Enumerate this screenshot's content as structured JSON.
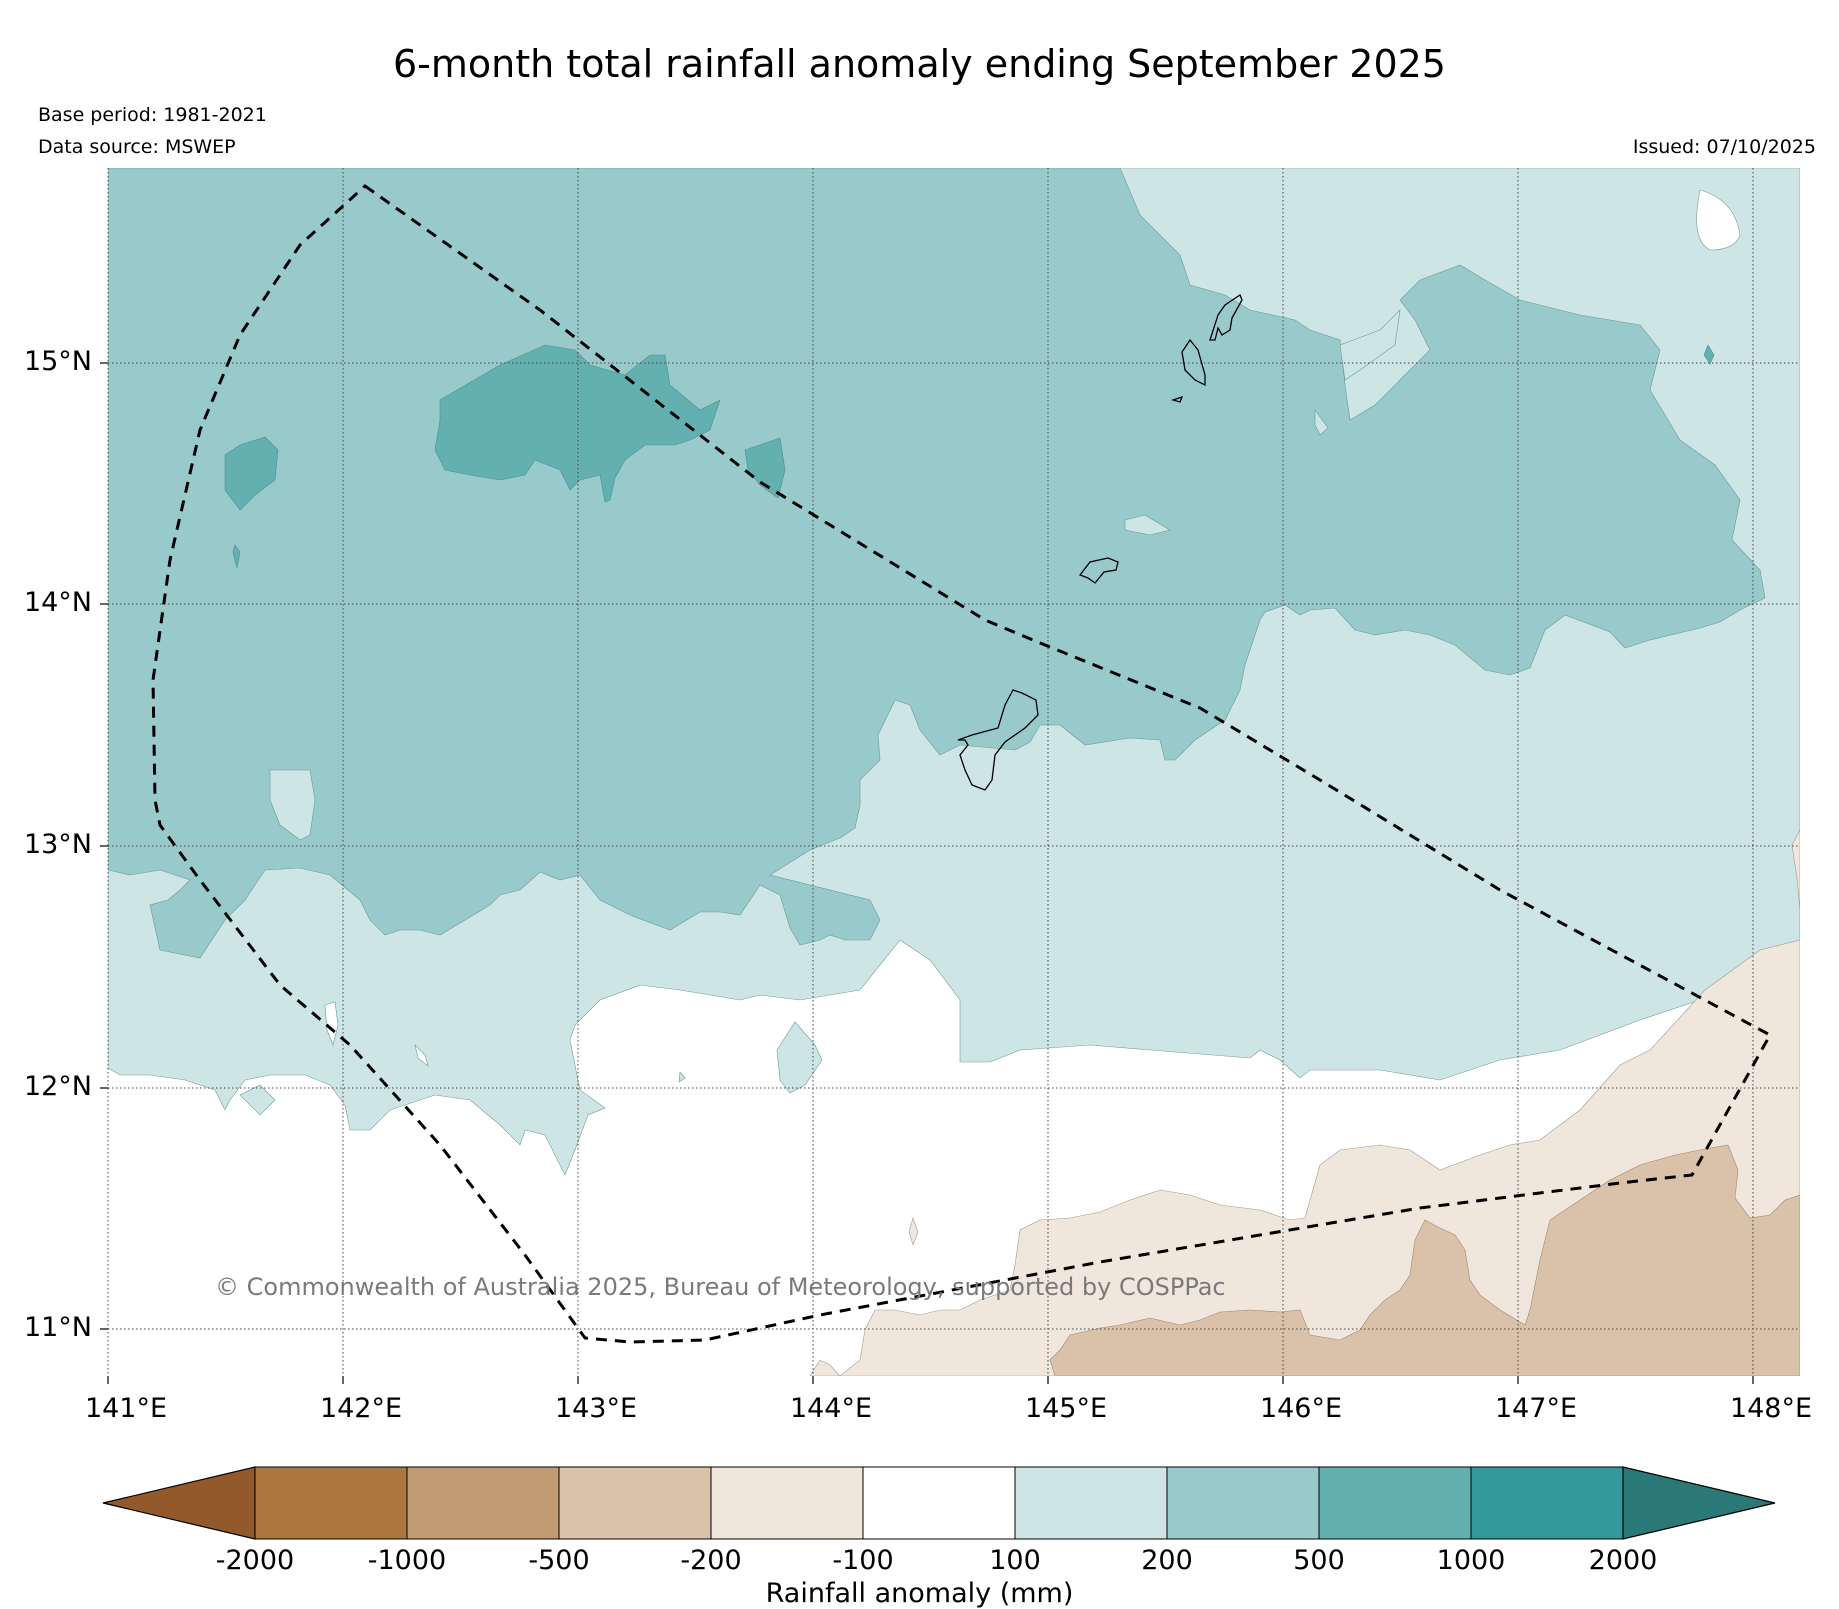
{
  "title": "6-month total rainfall anomaly ending September 2025",
  "meta": {
    "base_period": "Base period: 1981-2021",
    "data_source": "Data source: MSWEP",
    "issued": "Issued: 07/10/2025"
  },
  "map": {
    "lat_labels": [
      "15°N",
      "14°N",
      "13°N",
      "12°N",
      "11°N"
    ],
    "lon_labels": [
      "141°E",
      "142°E",
      "143°E",
      "144°E",
      "145°E",
      "146°E",
      "147°E",
      "148°E"
    ],
    "lon_range": [
      141.0,
      148.2
    ],
    "lat_range": [
      10.8,
      15.8
    ],
    "region_outline": "dashed",
    "copyright": "© Commonwealth of Australia 2025, Bureau of Meteorology, supported by COSPPac"
  },
  "colorbar": {
    "label": "Rainfall anomaly (mm)",
    "ticks": [
      "-2000",
      "-1000",
      "-500",
      "-200",
      "-100",
      "100",
      "200",
      "500",
      "1000",
      "2000"
    ],
    "colors": [
      "#93592a",
      "#ab763f",
      "#c39b72",
      "#dac2aa",
      "#f0e6dc",
      "#ffffff",
      "#cde5e4",
      "#99cacb",
      "#63b0b1",
      "#33999a",
      "#2a7877"
    ]
  }
}
